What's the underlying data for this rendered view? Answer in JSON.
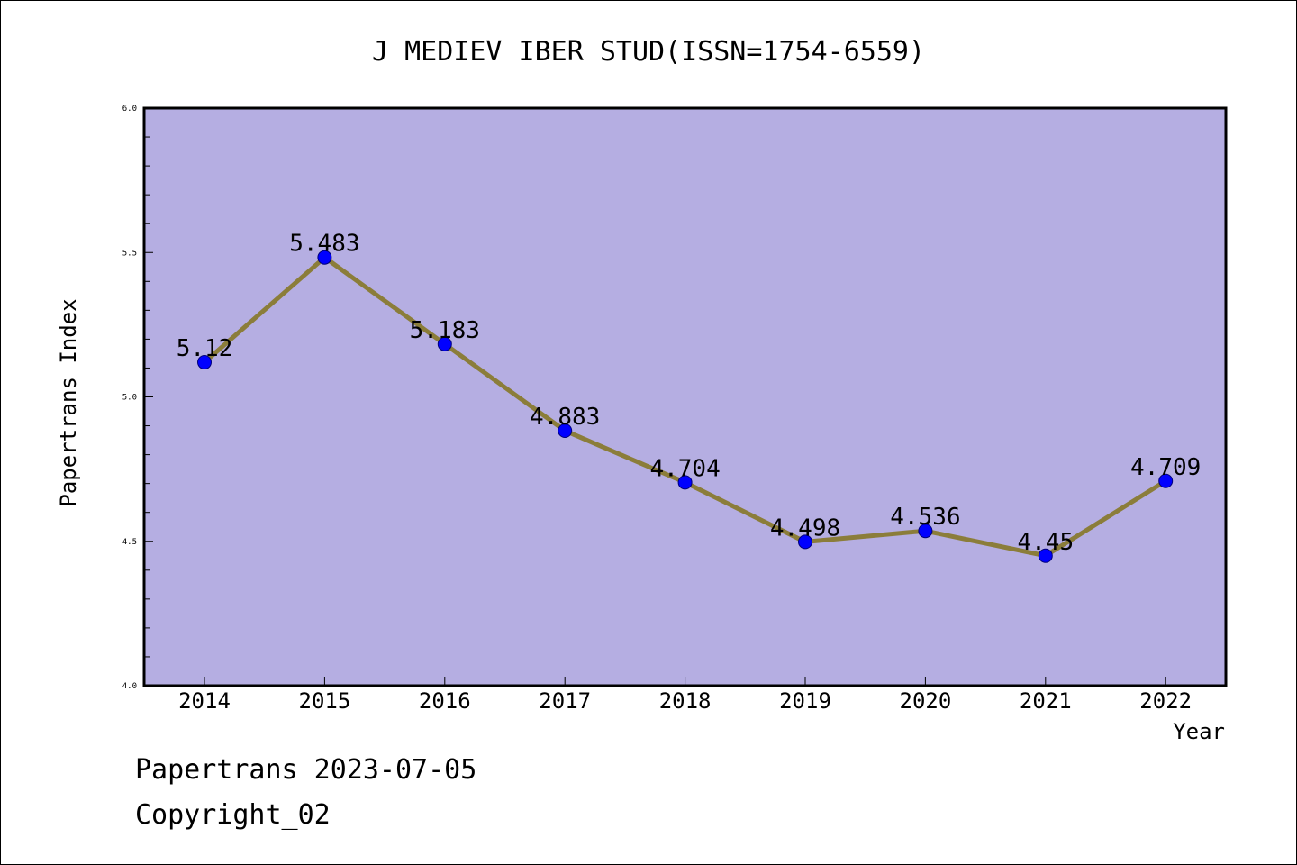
{
  "chart_data": {
    "type": "line",
    "title": "J MEDIEV IBER STUD(ISSN=1754-6559)",
    "xlabel": "Year",
    "ylabel": "Papertrans Index",
    "categories": [
      "2014",
      "2015",
      "2016",
      "2017",
      "2018",
      "2019",
      "2020",
      "2021",
      "2022"
    ],
    "series": [
      {
        "values": [
          5.12,
          5.483,
          5.183,
          4.883,
          4.704,
          4.498,
          4.536,
          4.45,
          4.709
        ],
        "labels": [
          "5.12",
          "5.483",
          "5.183",
          "4.883",
          "4.704",
          "4.498",
          "4.536",
          "4.45",
          "4.709"
        ]
      }
    ],
    "ylim": [
      4.0,
      6.0
    ],
    "yticks": [
      "4.0",
      "4.5",
      "5.0",
      "5.5",
      "6.0"
    ],
    "grid": false,
    "colors": {
      "plot_background": "#b5aee2",
      "line": "#8b7d3a",
      "marker": "#0000ff"
    }
  },
  "footer": {
    "line1": "Papertrans 2023-07-05",
    "line2": "Copyright_02"
  }
}
